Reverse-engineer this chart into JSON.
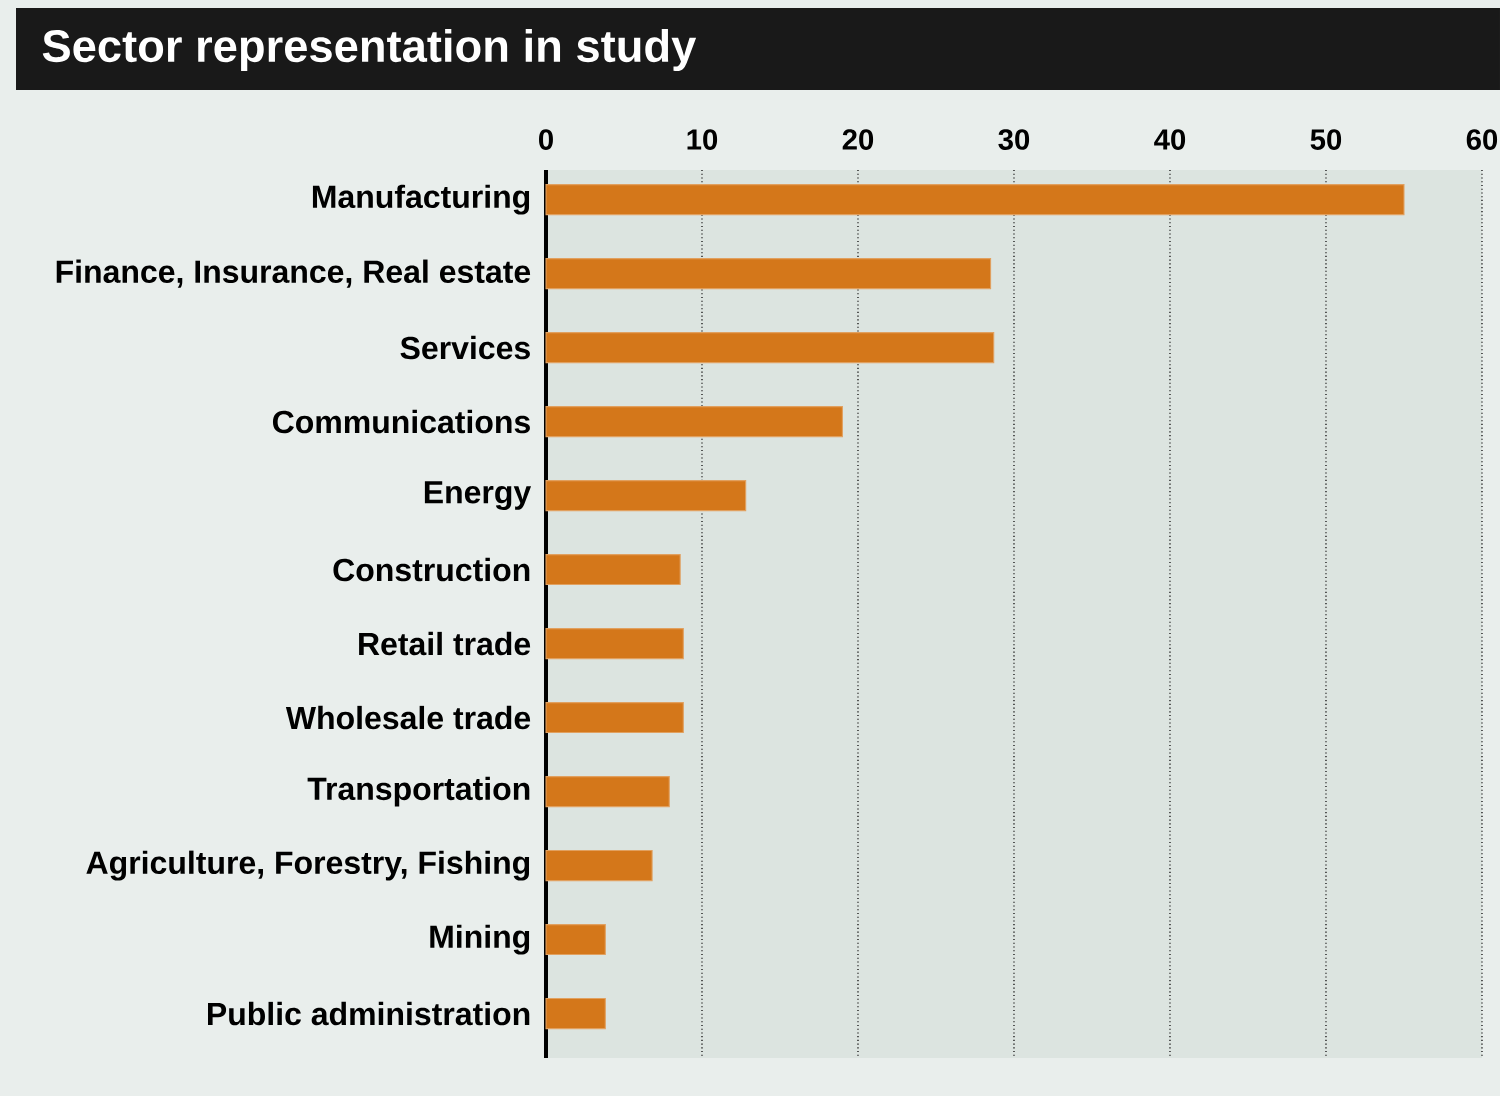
{
  "chart_data": {
    "type": "bar",
    "orientation": "horizontal",
    "title": "Sector representation in study",
    "categories": [
      "Manufacturing",
      "Finance, Insurance, Real estate",
      "Services",
      "Communications",
      "Energy",
      "Construction",
      "Retail trade",
      "Wholesale trade",
      "Transportation",
      "Agriculture, Forestry, Fishing",
      "Mining",
      "Public administration"
    ],
    "values": [
      55,
      28.5,
      28.7,
      19,
      12.8,
      8.6,
      8.8,
      8.8,
      7.9,
      6.8,
      3.8,
      3.8
    ],
    "color": "#d4771a",
    "xlim": [
      0,
      60
    ],
    "xticks": [
      0,
      10,
      20,
      30,
      40,
      50,
      60
    ],
    "grid": "x"
  }
}
